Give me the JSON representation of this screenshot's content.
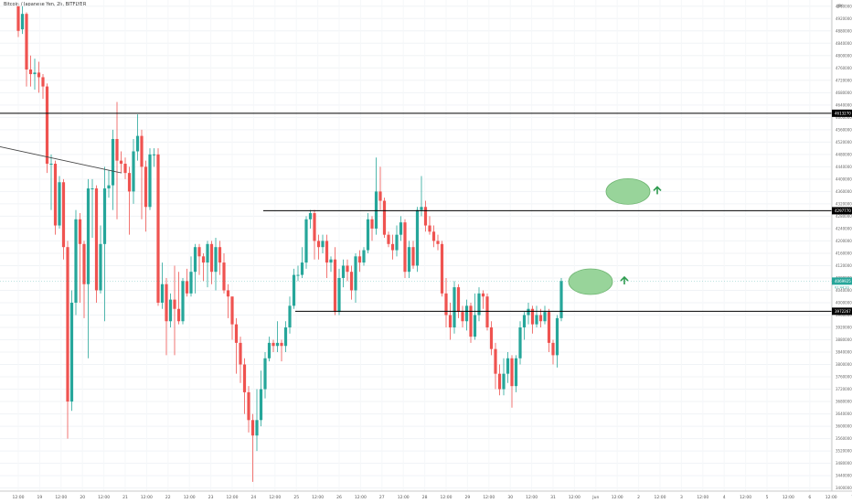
{
  "chart_data": {
    "type": "candlestick",
    "title": "Bitcoin / Japanese Yen, 2h, BITFLYER",
    "currency_label": "JPY",
    "price_ticks": [
      3400000,
      3440000,
      3480000,
      3520000,
      3560000,
      3600000,
      3640000,
      3680000,
      3720000,
      3760000,
      3800000,
      3840000,
      3880000,
      3920000,
      3960000,
      4000000,
      4040000,
      4080000,
      4120000,
      4160000,
      4200000,
      4240000,
      4280000,
      4320000,
      4360000,
      4400000,
      4440000,
      4480000,
      4520000,
      4560000,
      4600000,
      4640000,
      4680000,
      4720000,
      4760000,
      4800000,
      4840000,
      4880000,
      4920000,
      4960000
    ],
    "price_range": [
      3390000,
      4980000
    ],
    "time_labels": [
      "12:00",
      "19",
      "12:00",
      "20",
      "12:00",
      "21",
      "12:00",
      "22",
      "12:00",
      "23",
      "12:00",
      "24",
      "12:00",
      "25",
      "12:00",
      "26",
      "12:00",
      "27",
      "12:00",
      "28",
      "12:00",
      "29",
      "12:00",
      "30",
      "12:00",
      "31",
      "12:00",
      "Jun",
      "12:00",
      "2",
      "12:00",
      "3",
      "12:00",
      "4",
      "12:00",
      "5",
      "12:00",
      "6",
      "12:00",
      "7"
    ],
    "price_markers": [
      {
        "label": "4613270",
        "price": 4613270,
        "color": "#000000"
      },
      {
        "label": "4297770",
        "price": 4297770,
        "color": "#000000"
      },
      {
        "label": "4069925",
        "price": 4069925,
        "color": "#26a69a"
      },
      {
        "label": "3972267",
        "price": 3972267,
        "color": "#000000"
      }
    ],
    "countdown": "01:44:20",
    "candles": [
      [
        4960000,
        4880000,
        4955000,
        4860000
      ],
      [
        4885000,
        4935000,
        4960000,
        4870000
      ],
      [
        4935000,
        4755000,
        4940000,
        4700000
      ],
      [
        4755000,
        4740000,
        4800000,
        4700000
      ],
      [
        4740000,
        4745000,
        4790000,
        4690000
      ],
      [
        4745000,
        4730000,
        4780000,
        4680000
      ],
      [
        4730000,
        4700000,
        4740000,
        4660000
      ],
      [
        4700000,
        4450000,
        4710000,
        4420000
      ],
      [
        4450000,
        4450000,
        4480000,
        4300000
      ],
      [
        4450000,
        4250000,
        4460000,
        4220000
      ],
      [
        4250000,
        4390000,
        4410000,
        4240000
      ],
      [
        4390000,
        4180000,
        4400000,
        4140000
      ],
      [
        4180000,
        3680000,
        4200000,
        3560000
      ],
      [
        3680000,
        4000000,
        4040000,
        3650000
      ],
      [
        4000000,
        4270000,
        4300000,
        3960000
      ],
      [
        4270000,
        4190000,
        4290000,
        4000000
      ],
      [
        4190000,
        4060000,
        4200000,
        3950000
      ],
      [
        4060000,
        4370000,
        4400000,
        3820000
      ],
      [
        4370000,
        4370000,
        4400000,
        4210000
      ],
      [
        4370000,
        4040000,
        4380000,
        4000000
      ],
      [
        4040000,
        4190000,
        4250000,
        4030000
      ],
      [
        4190000,
        4370000,
        4440000,
        3940000
      ],
      [
        4370000,
        4380000,
        4430000,
        4340000
      ],
      [
        4380000,
        4530000,
        4560000,
        4300000
      ],
      [
        4530000,
        4460000,
        4650000,
        4270000
      ],
      [
        4460000,
        4450000,
        4490000,
        4420000
      ],
      [
        4450000,
        4420000,
        4470000,
        4400000
      ],
      [
        4420000,
        4360000,
        4440000,
        4220000
      ],
      [
        4360000,
        4490000,
        4530000,
        4320000
      ],
      [
        4490000,
        4540000,
        4610000,
        4460000
      ],
      [
        4540000,
        4440000,
        4560000,
        4270000
      ],
      [
        4440000,
        4310000,
        4460000,
        4230000
      ],
      [
        4310000,
        4480000,
        4500000,
        4300000
      ],
      [
        4480000,
        4480000,
        4500000,
        4440000
      ],
      [
        4480000,
        4000000,
        4500000,
        3990000
      ],
      [
        4000000,
        4060000,
        4130000,
        3980000
      ],
      [
        4060000,
        3940000,
        4080000,
        3830000
      ],
      [
        3940000,
        4010000,
        4030000,
        3920000
      ],
      [
        4010000,
        3980000,
        4120000,
        3830000
      ],
      [
        3980000,
        3940000,
        4100000,
        3930000
      ],
      [
        3940000,
        4070000,
        4080000,
        3930000
      ],
      [
        4070000,
        4030000,
        4110000,
        4020000
      ],
      [
        4030000,
        4100000,
        4150000,
        4020000
      ],
      [
        4100000,
        4180000,
        4190000,
        4030000
      ],
      [
        4180000,
        4150000,
        4190000,
        4090000
      ],
      [
        4150000,
        4130000,
        4160000,
        4070000
      ],
      [
        4130000,
        4190000,
        4200000,
        4050000
      ],
      [
        4190000,
        4100000,
        4200000,
        4060000
      ],
      [
        4100000,
        4180000,
        4210000,
        4040000
      ],
      [
        4180000,
        4130000,
        4200000,
        4090000
      ],
      [
        4130000,
        4040000,
        4160000,
        4030000
      ],
      [
        4040000,
        4020000,
        4060000,
        3950000
      ],
      [
        4020000,
        3930000,
        4020000,
        3880000
      ],
      [
        3930000,
        3870000,
        3950000,
        3770000
      ],
      [
        3870000,
        3800000,
        3890000,
        3740000
      ],
      [
        3800000,
        3710000,
        3820000,
        3640000
      ],
      [
        3710000,
        3620000,
        3730000,
        3580000
      ],
      [
        3620000,
        3570000,
        3640000,
        3420000
      ],
      [
        3570000,
        3620000,
        3720000,
        3520000
      ],
      [
        3620000,
        3720000,
        3780000,
        3600000
      ],
      [
        3720000,
        3820000,
        3840000,
        3690000
      ],
      [
        3820000,
        3870000,
        3890000,
        3810000
      ],
      [
        3870000,
        3860000,
        3880000,
        3840000
      ],
      [
        3860000,
        3870000,
        3940000,
        3840000
      ],
      [
        3870000,
        3860000,
        3880000,
        3810000
      ],
      [
        3860000,
        3920000,
        3940000,
        3840000
      ],
      [
        3920000,
        3990000,
        4020000,
        3900000
      ],
      [
        3990000,
        4090000,
        4110000,
        3980000
      ],
      [
        4090000,
        4090000,
        4120000,
        4070000
      ],
      [
        4090000,
        4130000,
        4180000,
        4080000
      ],
      [
        4130000,
        4270000,
        4280000,
        4110000
      ],
      [
        4270000,
        4290000,
        4300000,
        4240000
      ],
      [
        4290000,
        4200000,
        4300000,
        4140000
      ],
      [
        4200000,
        4180000,
        4220000,
        4140000
      ],
      [
        4180000,
        4200000,
        4220000,
        4160000
      ],
      [
        4200000,
        4130000,
        4220000,
        4080000
      ],
      [
        4130000,
        4140000,
        4150000,
        4100000
      ],
      [
        4140000,
        3970000,
        4180000,
        3960000
      ],
      [
        3970000,
        4080000,
        4110000,
        3960000
      ],
      [
        4080000,
        4120000,
        4140000,
        4050000
      ],
      [
        4120000,
        4100000,
        4140000,
        4070000
      ],
      [
        4100000,
        4040000,
        4120000,
        4010000
      ],
      [
        4040000,
        4150000,
        4160000,
        4000000
      ],
      [
        4150000,
        4130000,
        4170000,
        4100000
      ],
      [
        4130000,
        4170000,
        4180000,
        4120000
      ],
      [
        4170000,
        4270000,
        4290000,
        4160000
      ],
      [
        4270000,
        4240000,
        4280000,
        4200000
      ],
      [
        4240000,
        4360000,
        4470000,
        4220000
      ],
      [
        4360000,
        4330000,
        4440000,
        4300000
      ],
      [
        4330000,
        4220000,
        4340000,
        4210000
      ],
      [
        4220000,
        4190000,
        4230000,
        4180000
      ],
      [
        4190000,
        4170000,
        4220000,
        4140000
      ],
      [
        4170000,
        4220000,
        4250000,
        4150000
      ],
      [
        4220000,
        4260000,
        4280000,
        4200000
      ],
      [
        4260000,
        4100000,
        4270000,
        4080000
      ],
      [
        4100000,
        4180000,
        4200000,
        4080000
      ],
      [
        4180000,
        4120000,
        4200000,
        4110000
      ],
      [
        4120000,
        4300000,
        4310000,
        4100000
      ],
      [
        4300000,
        4310000,
        4410000,
        4280000
      ],
      [
        4310000,
        4250000,
        4330000,
        4230000
      ],
      [
        4250000,
        4230000,
        4280000,
        4220000
      ],
      [
        4230000,
        4200000,
        4250000,
        4180000
      ],
      [
        4200000,
        4190000,
        4220000,
        4170000
      ],
      [
        4190000,
        4030000,
        4200000,
        4020000
      ],
      [
        4030000,
        3960000,
        4080000,
        3920000
      ],
      [
        3960000,
        3920000,
        4000000,
        3880000
      ],
      [
        3920000,
        4050000,
        4070000,
        3900000
      ],
      [
        4050000,
        3970000,
        4060000,
        3950000
      ],
      [
        3970000,
        3940000,
        3990000,
        3920000
      ],
      [
        3940000,
        3990000,
        4010000,
        3910000
      ],
      [
        3990000,
        3890000,
        4000000,
        3870000
      ],
      [
        3890000,
        3960000,
        4030000,
        3880000
      ],
      [
        3960000,
        4030000,
        4050000,
        3940000
      ],
      [
        4030000,
        4020000,
        4040000,
        3980000
      ],
      [
        4020000,
        3920000,
        4030000,
        3910000
      ],
      [
        3920000,
        3850000,
        3940000,
        3830000
      ],
      [
        3850000,
        3770000,
        3870000,
        3720000
      ],
      [
        3770000,
        3720000,
        3800000,
        3700000
      ],
      [
        3720000,
        3770000,
        3820000,
        3700000
      ],
      [
        3770000,
        3820000,
        3840000,
        3740000
      ],
      [
        3820000,
        3730000,
        3830000,
        3660000
      ],
      [
        3730000,
        3820000,
        3830000,
        3710000
      ],
      [
        3820000,
        3920000,
        3940000,
        3800000
      ],
      [
        3920000,
        3960000,
        3970000,
        3880000
      ],
      [
        3960000,
        3980000,
        4000000,
        3930000
      ],
      [
        3980000,
        3930000,
        3990000,
        3900000
      ],
      [
        3930000,
        3960000,
        3990000,
        3920000
      ],
      [
        3960000,
        3940000,
        3980000,
        3920000
      ],
      [
        3940000,
        3970000,
        3990000,
        3930000
      ],
      [
        3970000,
        3870000,
        3980000,
        3840000
      ],
      [
        3870000,
        3830000,
        3880000,
        3800000
      ],
      [
        3830000,
        3950000,
        3960000,
        3790000
      ],
      [
        3950000,
        4070000,
        4080000,
        3940000
      ]
    ]
  }
}
